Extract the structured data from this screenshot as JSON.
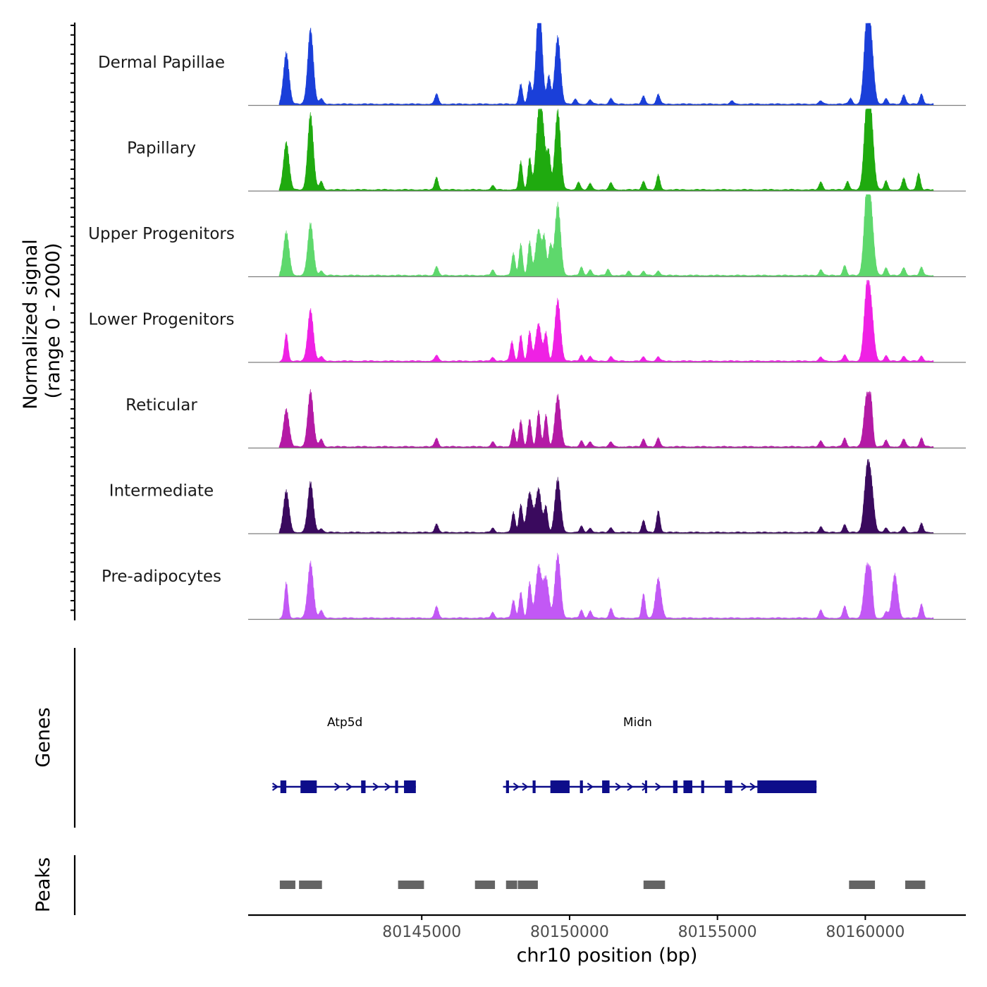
{
  "chart_data": {
    "type": "area",
    "chromosome": "chr10",
    "xlabel": "chr10 position (bp)",
    "xlim": [
      80139130,
      80163400
    ],
    "xticks": [
      "80145000",
      "80150000",
      "80155000",
      "80160000"
    ],
    "xtick_values": [
      80145000,
      80150000,
      80155000,
      80160000
    ],
    "signal_ylabel_line1": "Normalized signal",
    "signal_ylabel_line2": "(range 0 - 2000)",
    "ylim": [
      0,
      2000
    ],
    "genes_ylabel": "Genes",
    "peaks_ylabel": "Peaks",
    "tracks": [
      {
        "name": "Dermal Papillae",
        "color": "#1a3fd9",
        "peaks": [
          [
            80140420,
            1300
          ],
          [
            80141240,
            1900
          ],
          [
            80141600,
            140
          ],
          [
            80145500,
            260
          ],
          [
            80148350,
            500
          ],
          [
            80148650,
            560
          ],
          [
            80148950,
            1500
          ],
          [
            80149000,
            1200
          ],
          [
            80149300,
            700
          ],
          [
            80149600,
            1700
          ],
          [
            80150200,
            120
          ],
          [
            80150700,
            110
          ],
          [
            80151400,
            150
          ],
          [
            80152500,
            200
          ],
          [
            80153000,
            250
          ],
          [
            80155500,
            80
          ],
          [
            80158500,
            80
          ],
          [
            80159500,
            150
          ],
          [
            80160050,
            2000
          ],
          [
            80160200,
            1300
          ],
          [
            80160700,
            130
          ],
          [
            80161300,
            240
          ],
          [
            80161900,
            260
          ]
        ]
      },
      {
        "name": "Papillary",
        "color": "#1faa0f",
        "peaks": [
          [
            80140420,
            1200
          ],
          [
            80141240,
            1900
          ],
          [
            80141600,
            220
          ],
          [
            80145500,
            320
          ],
          [
            80147400,
            100
          ],
          [
            80148350,
            700
          ],
          [
            80148650,
            800
          ],
          [
            80148950,
            1700
          ],
          [
            80149100,
            1300
          ],
          [
            80149300,
            850
          ],
          [
            80149600,
            2000
          ],
          [
            80150300,
            200
          ],
          [
            80150700,
            160
          ],
          [
            80151400,
            180
          ],
          [
            80152500,
            220
          ],
          [
            80153000,
            380
          ],
          [
            80158500,
            200
          ],
          [
            80159400,
            220
          ],
          [
            80160050,
            2000
          ],
          [
            80160200,
            1500
          ],
          [
            80160700,
            220
          ],
          [
            80161300,
            300
          ],
          [
            80161800,
            420
          ]
        ]
      },
      {
        "name": "Upper Progenitors",
        "color": "#5ed86c",
        "peaks": [
          [
            80140420,
            1100
          ],
          [
            80141240,
            1300
          ],
          [
            80141600,
            120
          ],
          [
            80145500,
            230
          ],
          [
            80147400,
            130
          ],
          [
            80148100,
            550
          ],
          [
            80148350,
            800
          ],
          [
            80148650,
            850
          ],
          [
            80148950,
            1150
          ],
          [
            80149150,
            900
          ],
          [
            80149350,
            750
          ],
          [
            80149600,
            1800
          ],
          [
            80150400,
            200
          ],
          [
            80150700,
            150
          ],
          [
            80151300,
            150
          ],
          [
            80152000,
            100
          ],
          [
            80152500,
            100
          ],
          [
            80153000,
            120
          ],
          [
            80158500,
            150
          ],
          [
            80159300,
            250
          ],
          [
            80160050,
            2000
          ],
          [
            80160200,
            1300
          ],
          [
            80160700,
            200
          ],
          [
            80161300,
            200
          ],
          [
            80161900,
            200
          ]
        ]
      },
      {
        "name": "Lower Progenitors",
        "color": "#ef21e4",
        "peaks": [
          [
            80140420,
            700
          ],
          [
            80141240,
            1300
          ],
          [
            80141600,
            120
          ],
          [
            80145500,
            150
          ],
          [
            80147400,
            100
          ],
          [
            80148050,
            500
          ],
          [
            80148350,
            650
          ],
          [
            80148650,
            750
          ],
          [
            80148950,
            950
          ],
          [
            80149200,
            700
          ],
          [
            80149600,
            1550
          ],
          [
            80150400,
            150
          ],
          [
            80150700,
            120
          ],
          [
            80151400,
            120
          ],
          [
            80152500,
            100
          ],
          [
            80153000,
            110
          ],
          [
            80158500,
            100
          ],
          [
            80159300,
            150
          ],
          [
            80160050,
            1700
          ],
          [
            80160200,
            1100
          ],
          [
            80160700,
            130
          ],
          [
            80161300,
            130
          ],
          [
            80161900,
            130
          ]
        ]
      },
      {
        "name": "Reticular",
        "color": "#b41aa5",
        "peaks": [
          [
            80140420,
            950
          ],
          [
            80141240,
            1400
          ],
          [
            80141600,
            200
          ],
          [
            80145500,
            220
          ],
          [
            80147400,
            120
          ],
          [
            80148100,
            450
          ],
          [
            80148350,
            650
          ],
          [
            80148650,
            700
          ],
          [
            80148950,
            900
          ],
          [
            80149200,
            800
          ],
          [
            80149600,
            1300
          ],
          [
            80150400,
            150
          ],
          [
            80150700,
            120
          ],
          [
            80151400,
            120
          ],
          [
            80152500,
            200
          ],
          [
            80153000,
            220
          ],
          [
            80158500,
            150
          ],
          [
            80159300,
            220
          ],
          [
            80160050,
            1300
          ],
          [
            80160200,
            900
          ],
          [
            80160700,
            160
          ],
          [
            80161300,
            200
          ],
          [
            80161900,
            220
          ]
        ]
      },
      {
        "name": "Intermediate",
        "color": "#3a0a5e",
        "peaks": [
          [
            80140420,
            1050
          ],
          [
            80141240,
            1250
          ],
          [
            80141600,
            100
          ],
          [
            80145500,
            220
          ],
          [
            80147400,
            100
          ],
          [
            80148100,
            500
          ],
          [
            80148350,
            700
          ],
          [
            80148650,
            1000
          ],
          [
            80148950,
            1100
          ],
          [
            80149200,
            650
          ],
          [
            80149600,
            1350
          ],
          [
            80150400,
            150
          ],
          [
            80150700,
            110
          ],
          [
            80151400,
            120
          ],
          [
            80152500,
            300
          ],
          [
            80153000,
            550
          ],
          [
            80158500,
            150
          ],
          [
            80159300,
            200
          ],
          [
            80160050,
            1400
          ],
          [
            80160200,
            1050
          ],
          [
            80160700,
            120
          ],
          [
            80161300,
            150
          ],
          [
            80161900,
            220
          ]
        ]
      },
      {
        "name": "Pre-adipocytes",
        "color": "#c258f5",
        "peaks": [
          [
            80140420,
            900
          ],
          [
            80141240,
            1400
          ],
          [
            80141600,
            200
          ],
          [
            80145500,
            300
          ],
          [
            80147400,
            150
          ],
          [
            80148100,
            450
          ],
          [
            80148350,
            650
          ],
          [
            80148650,
            900
          ],
          [
            80148950,
            1300
          ],
          [
            80149200,
            1000
          ],
          [
            80149600,
            1600
          ],
          [
            80150400,
            200
          ],
          [
            80150700,
            180
          ],
          [
            80151400,
            250
          ],
          [
            80152500,
            600
          ],
          [
            80153000,
            1000
          ],
          [
            80158500,
            200
          ],
          [
            80159300,
            300
          ],
          [
            80160050,
            1300
          ],
          [
            80160200,
            800
          ],
          [
            80160700,
            150
          ],
          [
            80161000,
            1100
          ],
          [
            80161900,
            350
          ]
        ]
      }
    ],
    "gene_labels": [
      {
        "name": "Atp5d",
        "pos": 80142400
      },
      {
        "name": "Midn",
        "pos": 80152300
      }
    ],
    "gene_color": "#0d0d8a",
    "gene_lines": [
      [
        80139950,
        80144800
      ],
      [
        80147750,
        80158350
      ]
    ],
    "exons": [
      [
        80140220,
        80140420
      ],
      [
        80140900,
        80141450
      ],
      [
        80142950,
        80143100
      ],
      [
        80144100,
        80144200
      ],
      [
        80144400,
        80144800
      ],
      [
        80147850,
        80147950
      ],
      [
        80148750,
        80148850
      ],
      [
        80149350,
        80150000
      ],
      [
        80150350,
        80150450
      ],
      [
        80151100,
        80151350
      ],
      [
        80152550,
        80152600
      ],
      [
        80153500,
        80153650
      ],
      [
        80153850,
        80154150
      ],
      [
        80154450,
        80154550
      ],
      [
        80155250,
        80155500
      ],
      [
        80156350,
        80158350
      ]
    ],
    "arrows": [
      80140050,
      80142150,
      80142550,
      80143450,
      80143850,
      80148200,
      80148500,
      80150700,
      80151650,
      80152050,
      80152550,
      80153000,
      80155900,
      80156200
    ],
    "peak_color": "#646464",
    "peak_regions": [
      [
        80140200,
        80140750
      ],
      [
        80140850,
        80141650
      ],
      [
        80144200,
        80145100
      ],
      [
        80146800,
        80147500
      ],
      [
        80147850,
        80148250
      ],
      [
        80148250,
        80148950
      ],
      [
        80152500,
        80153250
      ],
      [
        80159450,
        80160350
      ],
      [
        80161350,
        80162050
      ]
    ]
  }
}
